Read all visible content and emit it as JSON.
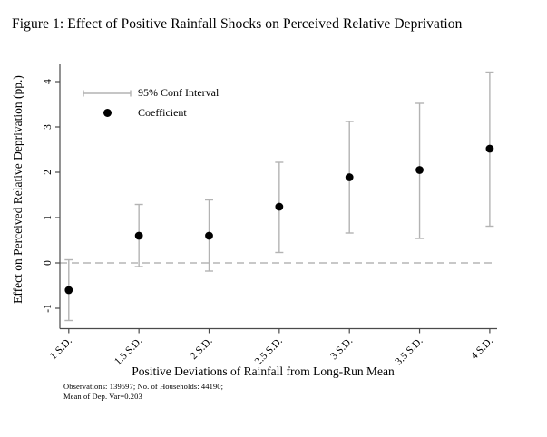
{
  "figure": {
    "title": "Figure 1: Effect of Positive Rainfall Shocks on Perceived Relative Deprivation",
    "note_line1": "Observations: 139597; No. of Households: 44190;",
    "note_line2": "Mean of Dep. Var=0.203"
  },
  "legend": {
    "ci_label": "95% Conf Interval",
    "coef_label": "Coefficient"
  },
  "chart_data": {
    "type": "scatter",
    "title": "Figure 1: Effect of Positive Rainfall Shocks on Perceived Relative Deprivation",
    "xlabel": "Positive Deviations of Rainfall from Long-Run Mean",
    "ylabel": "Effect on Perceived Relative Deprivation (pp.)",
    "categories": [
      "1 S.D.",
      "1.5 S.D.",
      "2 S.D.",
      "2.5 S.D.",
      "3 S.D.",
      "3.5 S.D.",
      "4 S.D."
    ],
    "series": [
      {
        "name": "Coefficient",
        "values": [
          -0.6,
          0.6,
          0.6,
          1.24,
          1.89,
          2.05,
          2.52
        ]
      },
      {
        "name": "95% CI lower",
        "values": [
          -1.27,
          -0.08,
          -0.18,
          0.23,
          0.66,
          0.54,
          0.81
        ]
      },
      {
        "name": "95% CI upper",
        "values": [
          0.07,
          1.29,
          1.39,
          2.22,
          3.12,
          3.52,
          4.21
        ]
      }
    ],
    "yticks": [
      -1,
      0,
      1,
      2,
      3,
      4
    ],
    "ylim": [
      -1.45,
      4.38
    ],
    "zero_line": 0,
    "grid": false,
    "legend_position": "top-left-inside",
    "colors": {
      "coefficient": "#000000",
      "ci": "#b3b3b3",
      "zero_line": "#a8a8a8",
      "axis": "#4a4a4a",
      "text": "#000000"
    }
  }
}
